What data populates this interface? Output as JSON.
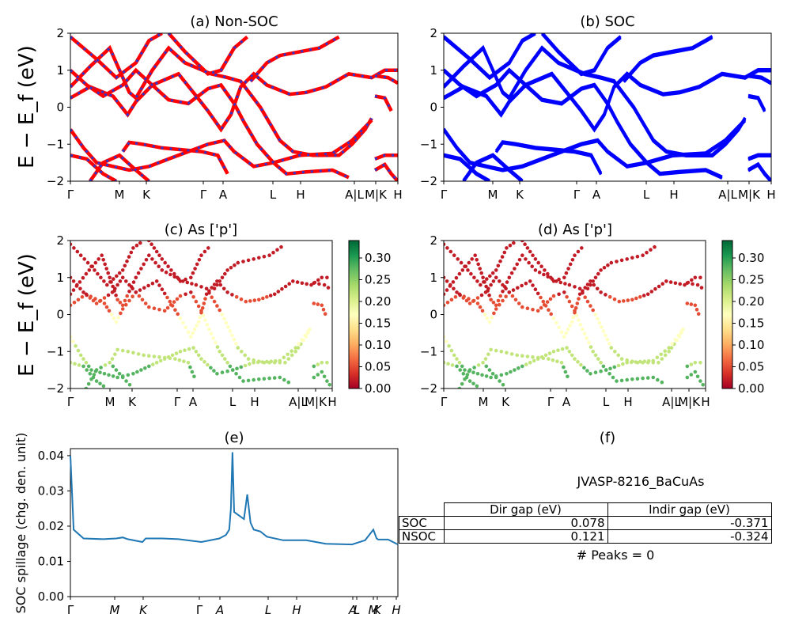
{
  "panels": {
    "a": {
      "title": "(a) Non-SOC"
    },
    "b": {
      "title": "(b) SOC"
    },
    "c": {
      "title": "(c)  As ['p']"
    },
    "d": {
      "title": "(d) As ['p']"
    },
    "e": {
      "title": "(e)"
    },
    "f": {
      "title": "(f)"
    }
  },
  "band_axes": {
    "ylabel": "E − E_f (eV)",
    "ylim": [
      -2,
      2
    ],
    "yticks": [
      "2",
      "1",
      "0",
      "−1",
      "−2"
    ],
    "kpath_ticks": [
      "Γ",
      "M",
      "K",
      "Γ",
      "A",
      "L",
      "H",
      "A|L",
      "M|K",
      "H"
    ]
  },
  "colorbar": {
    "range": [
      0.0,
      0.34
    ],
    "ticks": [
      "0.30",
      "0.25",
      "0.20",
      "0.15",
      "0.10",
      "0.05",
      "0.00"
    ],
    "cmap": "RdYlGn"
  },
  "spillage_axes": {
    "ylabel": "SOC spillage (chg. den. unit)",
    "ylim": [
      0.0,
      0.042
    ],
    "yticks": [
      "0.04",
      "0.03",
      "0.02",
      "0.01",
      "0.00"
    ],
    "xticks": [
      "Γ",
      "M",
      "K",
      "Γ",
      "A",
      "L",
      "H",
      "A",
      "L",
      "M",
      "K",
      "H"
    ]
  },
  "info": {
    "material": "JVASP-8216_BaCuAs",
    "table": {
      "headers": [
        "",
        "Dir gap (eV)",
        "Indir gap (eV)"
      ],
      "rows": [
        [
          "SOC",
          "0.078",
          "-0.371"
        ],
        [
          "NSOC",
          "0.121",
          "-0.324"
        ]
      ]
    },
    "peaks": "# Peaks = 0"
  },
  "colors": {
    "nonsoc_band": "#ff0000",
    "nonsoc_dash": "#3333cc",
    "soc_band": "#0000ff",
    "spillage_line": "#1f77b4"
  },
  "chart_data": [
    {
      "type": "line",
      "title": "(a) Non-SOC",
      "ylabel": "E − E_f (eV)",
      "ylim": [
        -2,
        2
      ],
      "x_labels": [
        "Γ",
        "M",
        "K",
        "Γ",
        "A",
        "L",
        "H",
        "A|L",
        "M|K",
        "H"
      ],
      "series": [
        {
          "values": [
            0.6,
            1.6,
            0.3,
            1.9,
            0.8,
            0.3,
            1.3,
            1.9
          ]
        },
        {
          "values": [
            -0.6,
            -1.2,
            -0.6,
            -1.4,
            -1.3,
            -1.6,
            -1.3,
            -0.3
          ]
        }
      ]
    },
    {
      "type": "line",
      "title": "(b) SOC",
      "ylabel": "E − E_f (eV)",
      "ylim": [
        -2,
        2
      ],
      "x_labels": [
        "Γ",
        "M",
        "K",
        "Γ",
        "A",
        "L",
        "H",
        "A|L",
        "M|K",
        "H"
      ],
      "series": [
        {
          "values": [
            0.6,
            1.6,
            0.3,
            1.9,
            0.8,
            0.3,
            1.3,
            1.9
          ]
        },
        {
          "values": [
            -0.6,
            -1.2,
            -0.6,
            -1.4,
            -1.3,
            -1.6,
            -1.3,
            -0.3
          ]
        }
      ]
    },
    {
      "type": "scatter",
      "title": "(c)  As ['p']",
      "ylim": [
        -2,
        2
      ],
      "colorbar_range": [
        0.0,
        0.34
      ]
    },
    {
      "type": "scatter",
      "title": "(d) As ['p']",
      "ylim": [
        -2,
        2
      ],
      "colorbar_range": [
        0.0,
        0.34
      ]
    },
    {
      "type": "line",
      "title": "(e)",
      "ylabel": "SOC spillage (chg. den. unit)",
      "ylim": [
        0.0,
        0.042
      ],
      "x": [
        0,
        0.01,
        0.04,
        0.1,
        0.14,
        0.16,
        0.175,
        0.22,
        0.23,
        0.25,
        0.28,
        0.33,
        0.4,
        0.455,
        0.475,
        0.485,
        0.49,
        0.495,
        0.5,
        0.53,
        0.54,
        0.55,
        0.56,
        0.58,
        0.6,
        0.65,
        0.72,
        0.78,
        0.86,
        0.9,
        0.925,
        0.935,
        0.94,
        0.97,
        1.0
      ],
      "values": [
        0.04,
        0.019,
        0.0165,
        0.0163,
        0.0165,
        0.0168,
        0.0163,
        0.0155,
        0.0165,
        0.0165,
        0.0165,
        0.0163,
        0.0155,
        0.0165,
        0.0175,
        0.019,
        0.025,
        0.041,
        0.024,
        0.022,
        0.029,
        0.021,
        0.019,
        0.0185,
        0.017,
        0.016,
        0.016,
        0.015,
        0.0148,
        0.016,
        0.019,
        0.0165,
        0.0162,
        0.0162,
        0.0148
      ],
      "x_labels": [
        "Γ",
        "M",
        "K",
        "Γ",
        "A",
        "L",
        "H",
        "A",
        "L",
        "M",
        "K",
        "H"
      ]
    }
  ]
}
